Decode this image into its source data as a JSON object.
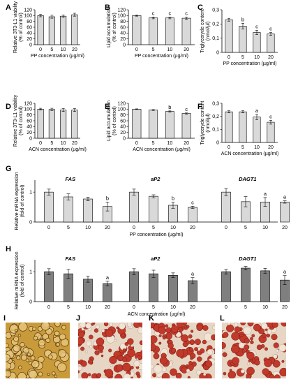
{
  "colors": {
    "light_bar": "#d9d9d9",
    "dark_bar": "#7f7f7f",
    "axis": "#000000",
    "photo_stain": "#c0392b"
  },
  "photos": [
    {
      "label": "I",
      "style": "unstained"
    },
    {
      "label": "J",
      "style": "stained"
    },
    {
      "label": "K",
      "style": "stained"
    },
    {
      "label": "L",
      "style": "stained"
    }
  ],
  "chart_data": [
    {
      "label": "A",
      "type": "bar",
      "categories": [
        "0",
        "5",
        "10",
        "20"
      ],
      "values": [
        100,
        96,
        98,
        103
      ],
      "errors": [
        4,
        5,
        4,
        5
      ],
      "annotations": [
        "",
        "",
        "",
        ""
      ],
      "xlabel": "PP concentration (µg/ml)",
      "ylabel": [
        "Relative 3T3-L1 viability",
        "(% of control)"
      ],
      "ylim": [
        0,
        120
      ],
      "yticks": [
        "0",
        "20",
        "40",
        "60",
        "80",
        "100",
        "120"
      ],
      "bar_color": "light"
    },
    {
      "label": "B",
      "type": "bar",
      "categories": [
        "0",
        "5",
        "10",
        "20"
      ],
      "values": [
        100,
        92,
        92,
        91
      ],
      "errors": [
        2,
        3,
        3,
        4
      ],
      "annotations": [
        "",
        "c",
        "c",
        "c"
      ],
      "xlabel": "PP concentration (µg/ml)",
      "ylabel": [
        "Lipid accumulation",
        "(% of control)"
      ],
      "ylim": [
        0,
        120
      ],
      "yticks": [
        "0",
        "20",
        "40",
        "60",
        "80",
        "100",
        "120"
      ],
      "bar_color": "light"
    },
    {
      "label": "C",
      "type": "bar",
      "categories": [
        "0",
        "5",
        "10",
        "20"
      ],
      "values": [
        0.23,
        0.185,
        0.14,
        0.13
      ],
      "errors": [
        0.01,
        0.02,
        0.015,
        0.01
      ],
      "annotations": [
        "",
        "b",
        "c",
        "c"
      ],
      "xlabel": "PP concentration (µg/ml)",
      "ylabel": [
        "Triglyceryde content",
        "(nmol/µl)"
      ],
      "ylim": [
        0,
        0.3
      ],
      "yticks": [
        "0",
        "0,1",
        "0,2",
        "0,3"
      ],
      "bar_color": "light"
    },
    {
      "label": "D",
      "type": "bar",
      "categories": [
        "0",
        "5",
        "10",
        "20"
      ],
      "values": [
        100,
        99,
        97,
        97
      ],
      "errors": [
        3,
        4,
        5,
        5
      ],
      "annotations": [
        "",
        "",
        "",
        ""
      ],
      "xlabel": "ACN concentration (µg/ml)",
      "ylabel": [
        "Relative 3T3-L1 viability",
        "(% of control)"
      ],
      "ylim": [
        0,
        120
      ],
      "yticks": [
        "0",
        "20",
        "40",
        "60",
        "80",
        "100",
        "120"
      ],
      "bar_color": "light"
    },
    {
      "label": "E",
      "type": "bar",
      "categories": [
        "0",
        "5",
        "10",
        "20"
      ],
      "values": [
        100,
        97,
        92,
        85
      ],
      "errors": [
        1,
        1.5,
        2,
        2
      ],
      "annotations": [
        "",
        "",
        "b",
        "c"
      ],
      "xlabel": "ACN concentration (µg/ml)",
      "ylabel": [
        "Lipid accumulation",
        "(% of control)"
      ],
      "ylim": [
        0,
        120
      ],
      "yticks": [
        "0",
        "20",
        "40",
        "60",
        "80",
        "100",
        "120"
      ],
      "bar_color": "light"
    },
    {
      "label": "F",
      "type": "bar",
      "categories": [
        "0",
        "5",
        "10",
        "20"
      ],
      "values": [
        0.235,
        0.235,
        0.195,
        0.155
      ],
      "errors": [
        0.008,
        0.008,
        0.02,
        0.015
      ],
      "annotations": [
        "",
        "",
        "a",
        "c"
      ],
      "xlabel": "ACN concentration (µg/ml)",
      "ylabel": [
        "Triglyceryde content",
        "(nmol/µl)"
      ],
      "ylim": [
        0,
        0.3
      ],
      "yticks": [
        "0",
        "0,1",
        "0,2",
        "0,3"
      ],
      "bar_color": "light"
    },
    {
      "label": "G",
      "type": "bar",
      "xlabel": "PP concentration (µg/ml)",
      "ylabel": [
        "Relative mRNA expression",
        "(fold of control)"
      ],
      "ylim": [
        0,
        1.4
      ],
      "yticks": [
        "0",
        "1"
      ],
      "bar_color": "light",
      "groups": [
        {
          "name": "FAS",
          "categories": [
            "0",
            "5",
            "10",
            "20"
          ],
          "values": [
            1.0,
            0.84,
            0.77,
            0.52
          ],
          "errors": [
            0.1,
            0.1,
            0.06,
            0.15
          ],
          "annotations": [
            "",
            "",
            "",
            "b"
          ]
        },
        {
          "name": "aP2",
          "categories": [
            "0",
            "5",
            "10",
            "20"
          ],
          "values": [
            1.0,
            0.86,
            0.56,
            0.49
          ],
          "errors": [
            0.1,
            0.05,
            0.1,
            0.04
          ],
          "annotations": [
            "",
            "",
            "b",
            "c"
          ]
        },
        {
          "name": "DAGT1",
          "categories": [
            "0",
            "5",
            "10",
            "20"
          ],
          "values": [
            1.0,
            0.68,
            0.67,
            0.67
          ],
          "errors": [
            0.12,
            0.17,
            0.15,
            0.04
          ],
          "annotations": [
            "",
            "",
            "a",
            "a"
          ]
        }
      ]
    },
    {
      "label": "H",
      "type": "bar",
      "xlabel": "ACN concentration (µg/ml)",
      "ylabel": [
        "Relative mRNA expression",
        "(fold of control)"
      ],
      "ylim": [
        0,
        1.4
      ],
      "yticks": [
        "0",
        "1"
      ],
      "bar_color": "dark",
      "groups": [
        {
          "name": "FAS",
          "categories": [
            "0",
            "5",
            "10",
            "20"
          ],
          "values": [
            1.0,
            0.93,
            0.75,
            0.6
          ],
          "errors": [
            0.1,
            0.15,
            0.1,
            0.08
          ],
          "annotations": [
            "",
            "",
            "",
            "a"
          ]
        },
        {
          "name": "aP2",
          "categories": [
            "0",
            "5",
            "10",
            "20"
          ],
          "values": [
            1.0,
            0.93,
            0.88,
            0.7
          ],
          "errors": [
            0.1,
            0.12,
            0.08,
            0.1
          ],
          "annotations": [
            "",
            "",
            "",
            "a"
          ]
        },
        {
          "name": "DAGT1",
          "categories": [
            "0",
            "5",
            "10",
            "20"
          ],
          "values": [
            1.0,
            1.12,
            1.03,
            0.72
          ],
          "errors": [
            0.08,
            0.06,
            0.08,
            0.15
          ],
          "annotations": [
            "",
            "",
            "",
            "a"
          ]
        }
      ]
    }
  ]
}
